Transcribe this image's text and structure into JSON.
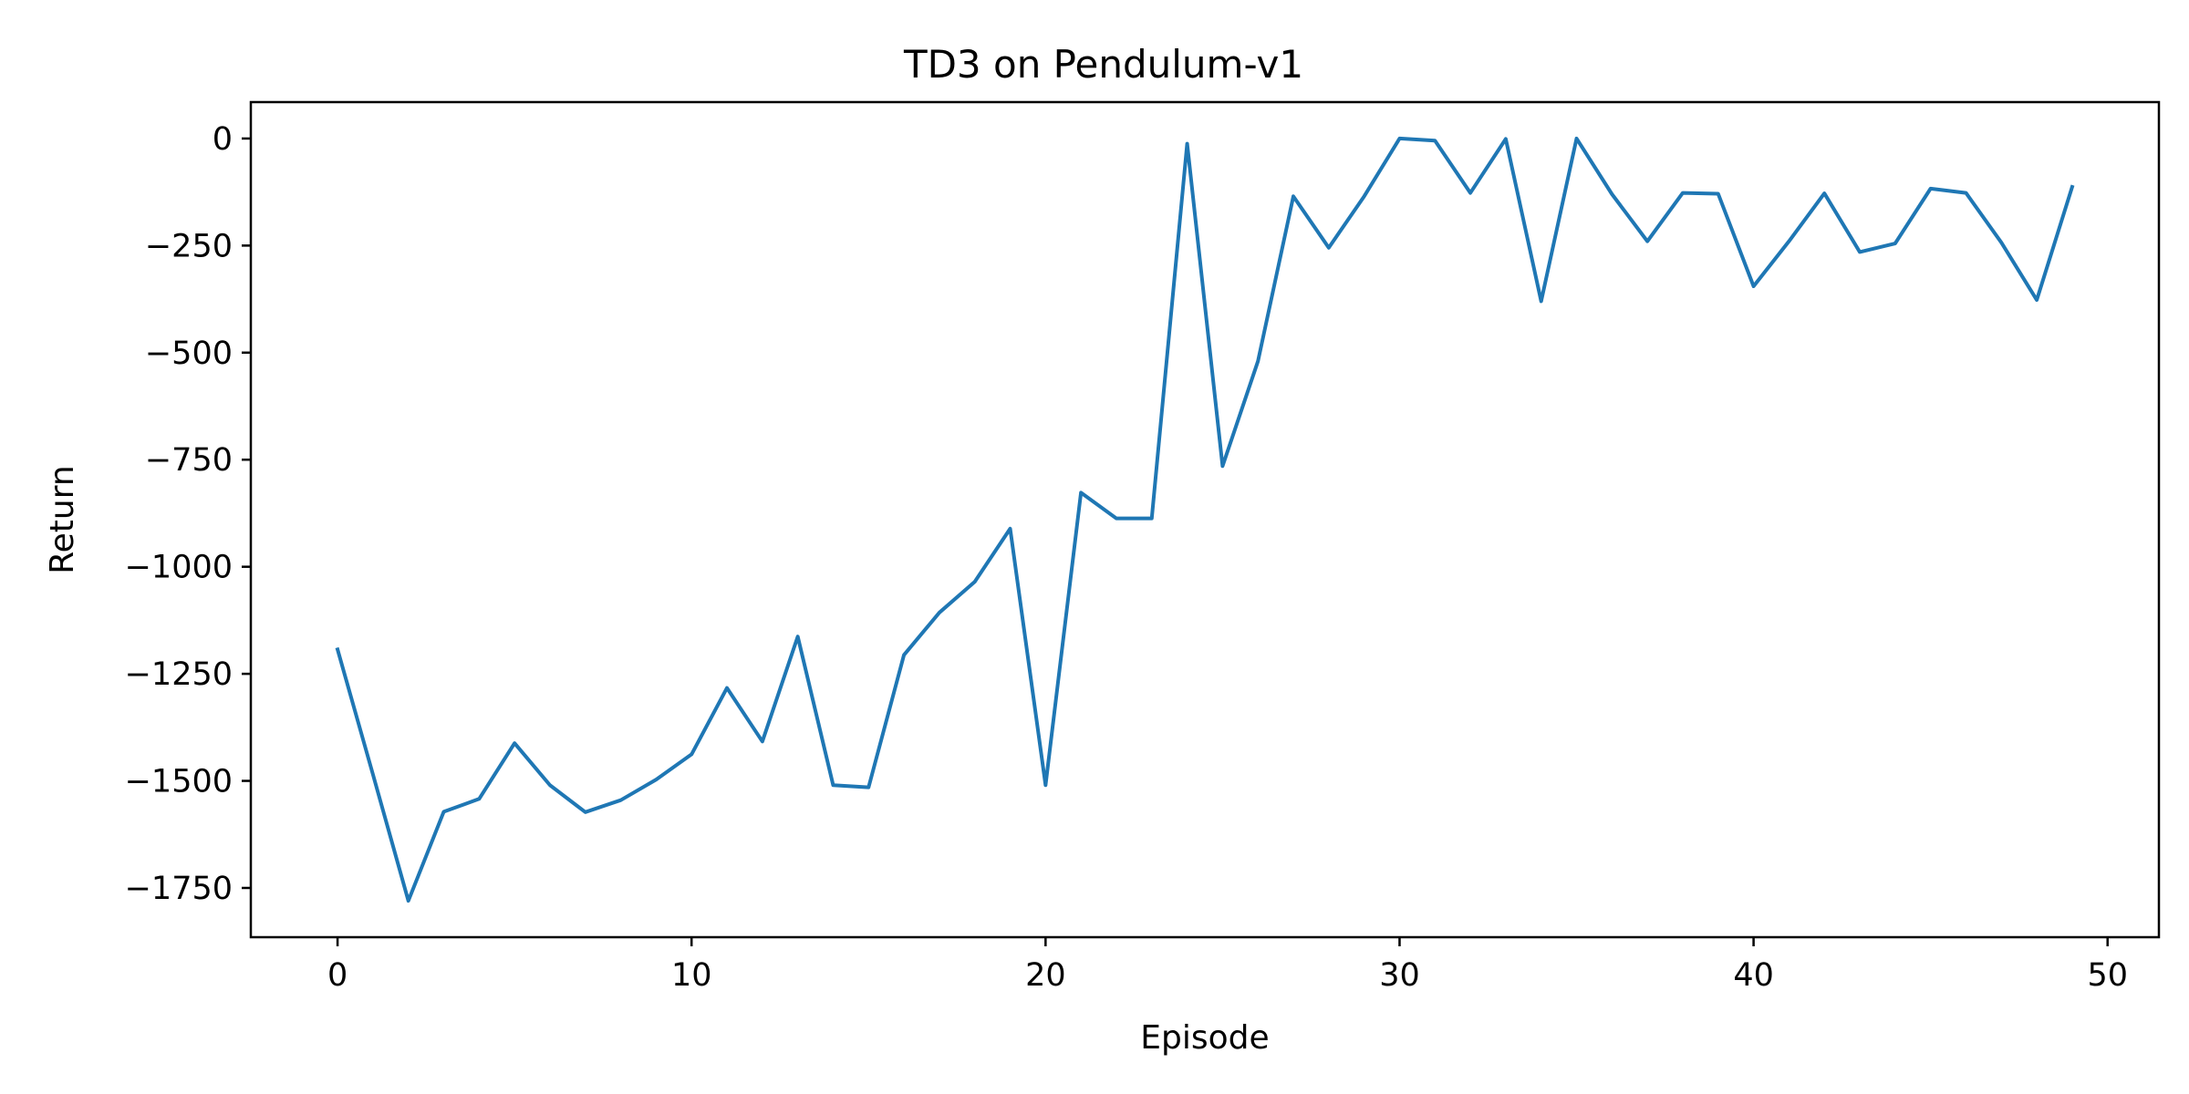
{
  "chart_data": {
    "type": "line",
    "title": "TD3 on Pendulum-v1",
    "xlabel": "Episode",
    "ylabel": "Return",
    "xlim": [
      -2.45,
      51.45
    ],
    "ylim": [
      -1865,
      85
    ],
    "xticks": [
      0,
      10,
      20,
      30,
      40,
      50
    ],
    "xtick_labels": [
      "0",
      "10",
      "20",
      "30",
      "40",
      "50"
    ],
    "yticks": [
      0,
      -250,
      -500,
      -750,
      -1000,
      -1250,
      -1500,
      -1750
    ],
    "ytick_labels": [
      "0",
      "−250",
      "−500",
      "−750",
      "−1000",
      "−1250",
      "−1500",
      "−1750"
    ],
    "grid": false,
    "line_color": "#1f77b4",
    "x": [
      0,
      1,
      2,
      3,
      4,
      5,
      6,
      7,
      8,
      9,
      10,
      11,
      12,
      13,
      14,
      15,
      16,
      17,
      18,
      19,
      20,
      21,
      22,
      23,
      24,
      25,
      26,
      27,
      28,
      29,
      30,
      31,
      32,
      33,
      34,
      35,
      36,
      37,
      38,
      39,
      40,
      41,
      42,
      43,
      44,
      45,
      46,
      47,
      48,
      49
    ],
    "values": [
      -1193,
      -1485,
      -1780,
      -1572,
      -1542,
      -1412,
      -1510,
      -1573,
      -1545,
      -1497,
      -1438,
      -1283,
      -1408,
      -1163,
      -1510,
      -1515,
      -1206,
      -1107,
      -1035,
      -911,
      -1510,
      -827,
      -887,
      -887,
      -12,
      -765,
      -520,
      -135,
      -255,
      -135,
      0,
      -5,
      -127,
      -1,
      -380,
      0,
      -130,
      -240,
      -127,
      -129,
      -345,
      -240,
      -128,
      -265,
      -245,
      -117,
      -127,
      -243,
      -377,
      -113
    ]
  }
}
